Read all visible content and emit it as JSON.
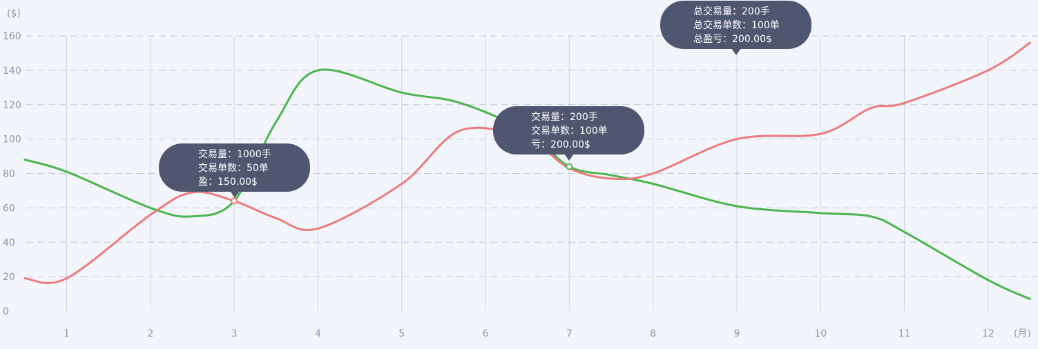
{
  "chart_data": {
    "type": "line",
    "y_unit": "($)",
    "x_unit": "(月)",
    "ylim": [
      0,
      160
    ],
    "y_ticks": [
      0,
      20,
      40,
      60,
      80,
      100,
      120,
      140,
      160
    ],
    "x_ticks": [
      "1",
      "2",
      "3",
      "4",
      "5",
      "6",
      "7",
      "8",
      "9",
      "10",
      "11",
      "12"
    ],
    "grid": "dashed horizontal, solid vertical",
    "series": [
      {
        "color": "#4cb54c",
        "x": [
          0.5,
          1,
          2,
          2.5,
          3,
          3.5,
          4,
          5,
          5.7,
          6.5,
          7,
          7.5,
          8,
          9,
          10,
          10.6,
          11,
          12,
          12.5
        ],
        "values": [
          88,
          81,
          60,
          55,
          64,
          110,
          140,
          127,
          121,
          104,
          84,
          79,
          74,
          61,
          57,
          55,
          46,
          18,
          7
        ]
      },
      {
        "color": "#ec7b7b",
        "x": [
          0.5,
          1,
          2,
          2.5,
          3,
          3.5,
          4,
          5,
          5.7,
          6.5,
          7,
          7.5,
          8,
          9,
          10,
          10.6,
          11,
          12,
          12.5
        ],
        "values": [
          19,
          19,
          56,
          69,
          64,
          54,
          48,
          74,
          105,
          100,
          83,
          77,
          80,
          100,
          103,
          118,
          121,
          140,
          156
        ]
      }
    ],
    "markers": [
      {
        "x": 3,
        "y": 64,
        "color": "#ec7b7b"
      },
      {
        "x": 7,
        "y": 84,
        "color": "#4cb54c"
      }
    ]
  },
  "tooltips": [
    {
      "lines": [
        "交易量：1000手",
        "交易单数：50单",
        "盈：150.00$"
      ]
    },
    {
      "lines": [
        "交易量：200手",
        "交易单数：100单",
        "亏：200.00$"
      ]
    },
    {
      "lines": [
        "总交易量：200手",
        "总交易单数：100单",
        "总盈亏：200.00$"
      ]
    }
  ]
}
